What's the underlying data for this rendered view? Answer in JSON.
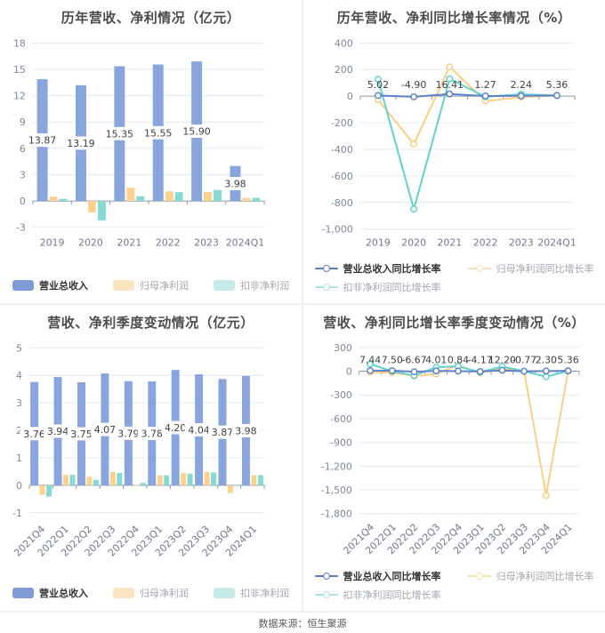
{
  "page": {
    "footer": "数据来源：恒生聚源"
  },
  "chart_data": [
    {
      "type": "bar",
      "title": "历年营收、净利情况（亿元）",
      "categories": [
        "2019",
        "2020",
        "2021",
        "2022",
        "2023",
        "2024Q1"
      ],
      "series": [
        {
          "name": "营业总收入",
          "color": "#89a6dc",
          "legend_color": "#7d9bd4",
          "values": [
            13.87,
            13.19,
            15.35,
            15.55,
            15.9,
            3.98
          ],
          "labels": [
            "13.87",
            "13.19",
            "15.35",
            "15.55",
            "15.90",
            "3.98"
          ]
        },
        {
          "name": "归母净利润",
          "color": "#fbd38f",
          "legend_color": "#fbe4c0",
          "values": [
            0.5,
            -1.3,
            1.52,
            1.1,
            1.02,
            0.35
          ]
        },
        {
          "name": "扣非净利润",
          "color": "#85dbd3",
          "legend_color": "#c5eae8",
          "values": [
            0.25,
            -2.2,
            0.55,
            1.0,
            1.25,
            0.35
          ]
        }
      ],
      "ytick_values": [
        18,
        15,
        12,
        9,
        6,
        3,
        0,
        -3
      ],
      "ytick_labels": [
        "18",
        "15",
        "12",
        "9",
        "6",
        "3",
        "0",
        "-3"
      ],
      "ylim": [
        -3,
        18
      ],
      "grid": true,
      "legend_style": "bar",
      "legend_layout": "row",
      "legend_position": "bottom",
      "rotate_x": false
    },
    {
      "type": "line",
      "title": "历年营收、净利同比增长率情况（%）",
      "categories": [
        "2019",
        "2020",
        "2021",
        "2022",
        "2023",
        "2024Q1"
      ],
      "series": [
        {
          "name": "营业总收入同比增长率",
          "color": "#5f82cb",
          "legend_color": "#5b7ec9",
          "values": [
            5.02,
            -4.9,
            16.41,
            1.27,
            2.24,
            5.36
          ],
          "labels": [
            "5.02",
            "-4.90",
            "16.41",
            "1.27",
            "2.24",
            "5.36"
          ]
        },
        {
          "name": "归母净利润同比增长率",
          "color": "#f9cf82",
          "legend_color": "#fadfae",
          "values": [
            -27,
            -360,
            220,
            -37,
            -8,
            4
          ]
        },
        {
          "name": "扣非净利润同比增长率",
          "color": "#5fd4ce",
          "legend_color": "#abe4e0",
          "values": [
            127,
            -850,
            130,
            -5,
            15,
            4
          ]
        }
      ],
      "ytick_values": [
        400,
        200,
        0,
        -200,
        -400,
        -600,
        -800,
        -1000
      ],
      "ytick_labels": [
        "400",
        "200",
        "0",
        "-200",
        "-400",
        "-600",
        "-800",
        "-1,000"
      ],
      "ylim": [
        -1000,
        400
      ],
      "grid": true,
      "legend_style": "line",
      "legend_layout": "two-row",
      "legend_position": "bottom",
      "rotate_x": false
    },
    {
      "type": "bar",
      "title": "营收、净利季度变动情况（亿元）",
      "categories": [
        "2021Q4",
        "2022Q1",
        "2022Q2",
        "2022Q3",
        "2022Q4",
        "2023Q1",
        "2023Q2",
        "2023Q3",
        "2023Q4",
        "2024Q1"
      ],
      "series": [
        {
          "name": "营业总收入",
          "color": "#89a6dc",
          "legend_color": "#7d9bd4",
          "values": [
            3.76,
            3.94,
            3.75,
            4.07,
            3.79,
            3.78,
            4.2,
            4.04,
            3.87,
            3.98
          ],
          "labels": [
            "3.76",
            "3.94",
            "3.75",
            "4.07",
            "3.79",
            "3.78",
            "4.20",
            "4.04",
            "3.87",
            "3.98"
          ]
        },
        {
          "name": "归母净利润",
          "color": "#fbd38f",
          "legend_color": "#fbe4c0",
          "values": [
            -0.35,
            0.38,
            0.31,
            0.49,
            0.02,
            0.36,
            0.44,
            0.49,
            -0.28,
            0.37
          ]
        },
        {
          "name": "扣非净利润",
          "color": "#85dbd3",
          "legend_color": "#c5eae8",
          "values": [
            -0.41,
            0.38,
            0.2,
            0.45,
            0.09,
            0.36,
            0.42,
            0.47,
            0.02,
            0.37
          ]
        }
      ],
      "ytick_values": [
        5,
        4,
        3,
        2,
        1,
        0,
        -1
      ],
      "ytick_labels": [
        "5",
        "4",
        "3",
        "2",
        "1",
        "0",
        "-1"
      ],
      "ylim": [
        -1,
        5
      ],
      "grid": true,
      "legend_style": "bar",
      "legend_layout": "row",
      "legend_position": "bottom",
      "rotate_x": true
    },
    {
      "type": "line",
      "title": "营收、净利同比增长率季度变动情况（%）",
      "categories": [
        "2021Q4",
        "2022Q1",
        "2022Q2",
        "2022Q3",
        "2022Q4",
        "2023Q1",
        "2023Q2",
        "2023Q3",
        "2023Q4",
        "2024Q1"
      ],
      "series": [
        {
          "name": "营业总收入同比增长率",
          "color": "#5f82cb",
          "legend_color": "#5b7ec9",
          "values": [
            7.44,
            7.5,
            -6.67,
            4.01,
            0.84,
            -4.17,
            12.2,
            -0.77,
            2.3,
            5.36
          ],
          "labels": [
            "7.44",
            "7.50",
            "-6.67",
            "4.01",
            "0.84",
            "-4.17",
            "12.20",
            "-0.77",
            "2.30",
            "5.36"
          ]
        },
        {
          "name": "归母净利润同比增长率",
          "color": "#f9cf82",
          "legend_color": "#fadfae",
          "values": [
            -12,
            -20,
            -62,
            -35,
            75,
            -22,
            40,
            -2,
            -1570,
            2
          ]
        },
        {
          "name": "扣非净利润同比增长率",
          "color": "#5fd4ce",
          "legend_color": "#abe4e0",
          "values": [
            90,
            0,
            -55,
            50,
            62,
            -12,
            60,
            0,
            -70,
            3
          ]
        }
      ],
      "ytick_values": [
        300,
        0,
        -300,
        -600,
        -900,
        -1200,
        -1500,
        -1800
      ],
      "ytick_labels": [
        "300",
        "0",
        "-300",
        "-600",
        "-900",
        "-1,200",
        "-1,500",
        "-1,800"
      ],
      "ylim": [
        -1800,
        300
      ],
      "grid": true,
      "legend_style": "line",
      "legend_layout": "two-row",
      "legend_position": "bottom",
      "rotate_x": true
    }
  ]
}
